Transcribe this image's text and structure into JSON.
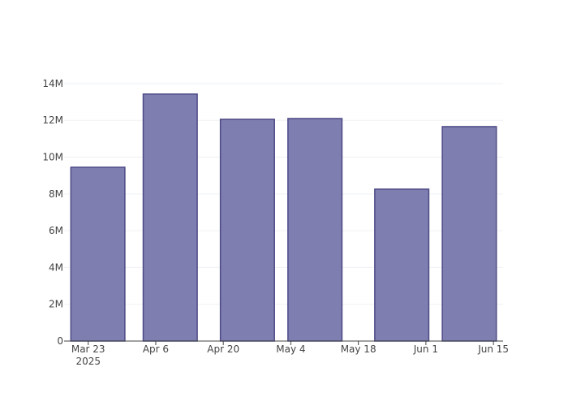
{
  "chart_data": {
    "type": "bar",
    "x": [
      "2025-03-25",
      "2025-04-09",
      "2025-04-25",
      "2025-05-09",
      "2025-05-27",
      "2025-06-10"
    ],
    "values": [
      9450000,
      13430000,
      12060000,
      12100000,
      8260000,
      11660000
    ],
    "color": "#7e7eb0",
    "edgecolor": "#4d4a85",
    "xlim": [
      "2025-03-18",
      "2025-06-17"
    ],
    "xticks": [
      {
        "value": "2025-03-23",
        "label": "Mar 23\n2025"
      },
      {
        "value": "2025-04-06",
        "label": "Apr 6"
      },
      {
        "value": "2025-04-20",
        "label": "Apr 20"
      },
      {
        "value": "2025-05-04",
        "label": "May 4"
      },
      {
        "value": "2025-05-18",
        "label": "May 18"
      },
      {
        "value": "2025-06-01",
        "label": "Jun 1"
      },
      {
        "value": "2025-06-15",
        "label": "Jun 15"
      }
    ],
    "ylim": [
      0,
      14130000
    ],
    "yticks": [
      0,
      {
        "value": 2000000,
        "label": "2M"
      },
      {
        "value": 4000000,
        "label": "4M"
      },
      {
        "value": 6000000,
        "label": "6M"
      },
      {
        "value": 8000000,
        "label": "8M"
      },
      {
        "value": 10000000,
        "label": "10M"
      },
      {
        "value": 12000000,
        "label": "12M"
      },
      {
        "value": 14000000,
        "label": "14M"
      }
    ],
    "grid": true
  }
}
